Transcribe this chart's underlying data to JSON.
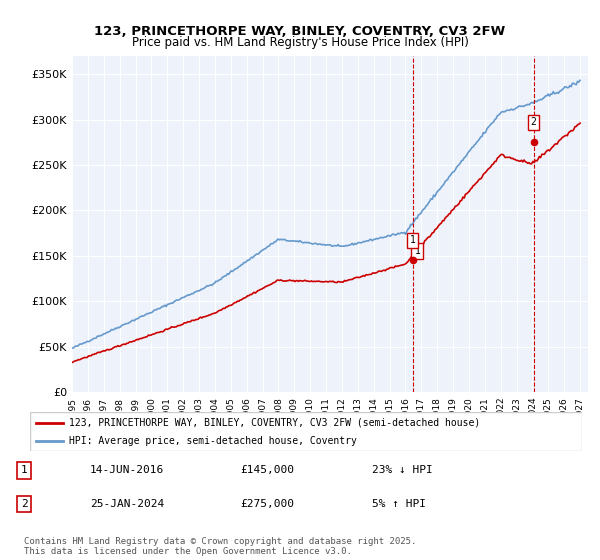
{
  "title": "123, PRINCETHORPE WAY, BINLEY, COVENTRY, CV3 2FW",
  "subtitle": "Price paid vs. HM Land Registry's House Price Index (HPI)",
  "ylabel_ticks": [
    "£0",
    "£50K",
    "£100K",
    "£150K",
    "£200K",
    "£250K",
    "£300K",
    "£350K"
  ],
  "ylim": [
    0,
    370000
  ],
  "xlim_start": 1995.0,
  "xlim_end": 2027.5,
  "sale1_date": 2016.45,
  "sale1_price": 145000,
  "sale1_label": "1",
  "sale1_hpi_pct": "23% ↓ HPI",
  "sale1_date_str": "14-JUN-2016",
  "sale2_date": 2024.07,
  "sale2_price": 275000,
  "sale2_label": "2",
  "sale2_hpi_pct": "5% ↑ HPI",
  "sale2_date_str": "25-JAN-2024",
  "legend_line1": "123, PRINCETHORPE WAY, BINLEY, COVENTRY, CV3 2FW (semi-detached house)",
  "legend_line2": "HPI: Average price, semi-detached house, Coventry",
  "footer": "Contains HM Land Registry data © Crown copyright and database right 2025.\nThis data is licensed under the Open Government Licence v3.0.",
  "property_color": "#cc0000",
  "hpi_color": "#6699cc",
  "background_color": "#eef3fb",
  "grid_color": "#ffffff",
  "vline_color": "#cc0000"
}
